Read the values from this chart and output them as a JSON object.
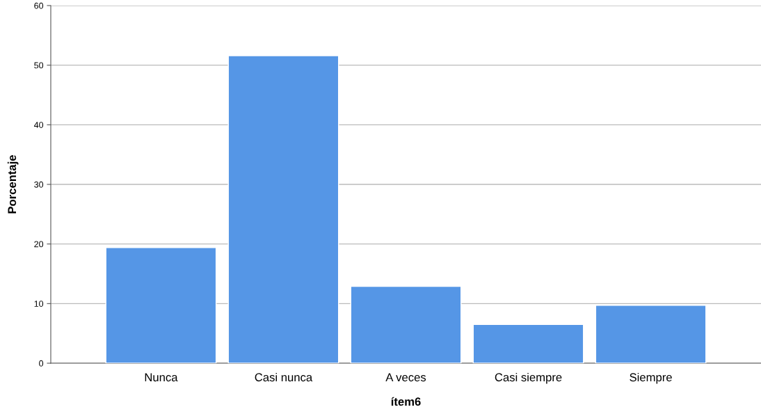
{
  "chart_data": {
    "type": "bar",
    "xlabel": "ítem6",
    "ylabel": "Porcentaje",
    "categories": [
      "Nunca",
      "Casi nunca",
      "A veces",
      "Casi siempre",
      "Siempre"
    ],
    "values": [
      19.4,
      51.6,
      12.9,
      6.5,
      9.7
    ],
    "color": "#5596e6",
    "ylim": [
      0,
      60
    ],
    "yticks": [
      0,
      10,
      20,
      30,
      40,
      50,
      60
    ],
    "grid": "y"
  }
}
